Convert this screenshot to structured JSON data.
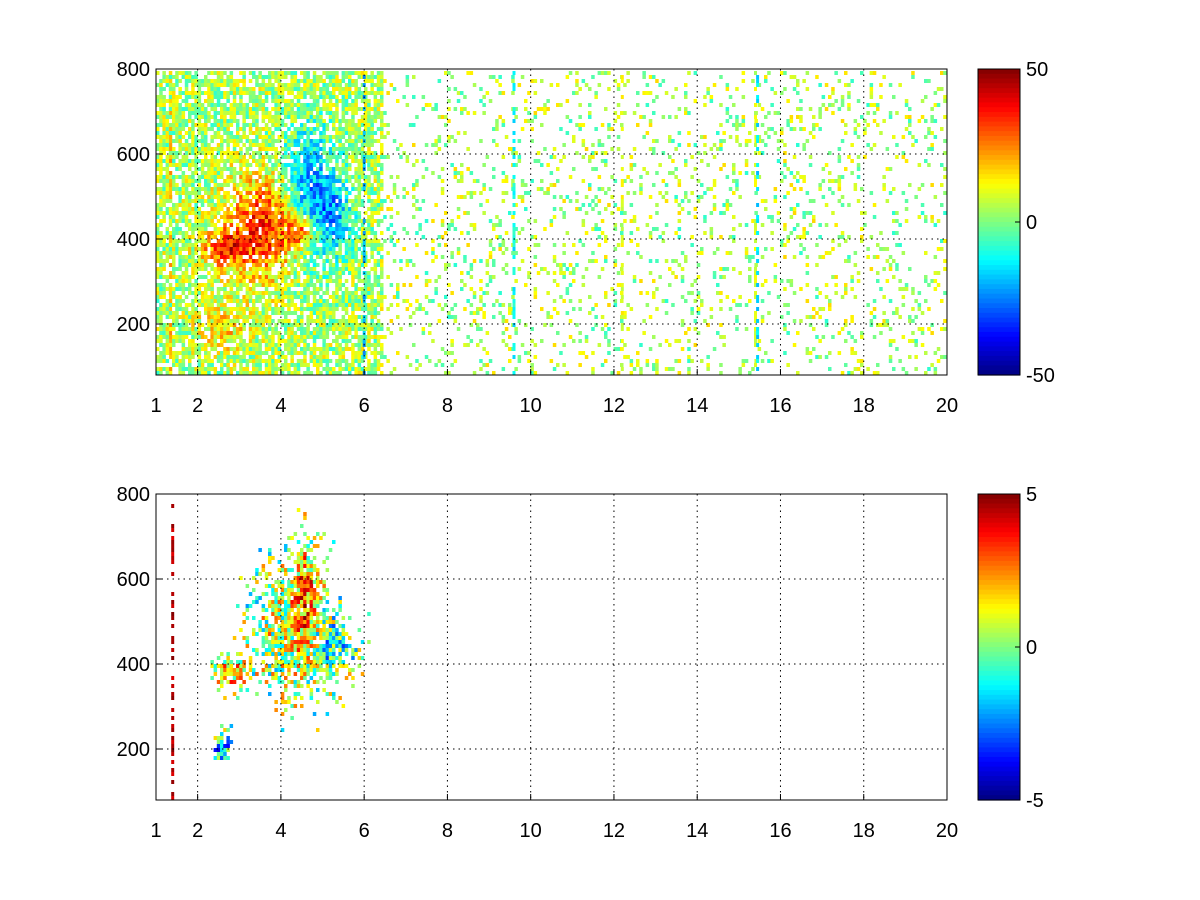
{
  "chart_data": [
    {
      "type": "heatmap",
      "title": "",
      "xlabel": "",
      "ylabel": "",
      "xlim": [
        1,
        20
      ],
      "ylim": [
        80,
        800
      ],
      "xticks": [
        1,
        2,
        4,
        6,
        8,
        10,
        12,
        14,
        16,
        18,
        20
      ],
      "yticks": [
        200,
        400,
        600,
        800
      ],
      "grid": true,
      "colormap": "jet",
      "clim": [
        -50,
        50
      ],
      "colorbar_ticks": [
        50,
        0,
        -50
      ],
      "features": [
        {
          "x": 3.6,
          "y": 430,
          "value": 32,
          "spread_x": 0.9,
          "spread_y": 120
        },
        {
          "x": 2.6,
          "y": 380,
          "value": 25,
          "spread_x": 0.5,
          "spread_y": 40
        },
        {
          "x": 4.5,
          "y": 420,
          "value": 30,
          "spread_x": 0.4,
          "spread_y": 40
        },
        {
          "x": 4.7,
          "y": 500,
          "value": -28,
          "spread_x": 0.7,
          "spread_y": 160
        },
        {
          "x": 5.3,
          "y": 450,
          "value": -15,
          "spread_x": 0.5,
          "spread_y": 80
        },
        {
          "x": 2.6,
          "y": 190,
          "value": 12,
          "spread_x": 0.6,
          "spread_y": 60
        }
      ],
      "vertical_streaks": [
        {
          "x": 1.35,
          "value": 20
        },
        {
          "x": 6.0,
          "value": -20
        },
        {
          "x": 9.6,
          "value": -12
        },
        {
          "x": 12.2,
          "value": 10
        },
        {
          "x": 15.4,
          "value": 8
        },
        {
          "x": 15.45,
          "value": -15
        }
      ]
    },
    {
      "type": "heatmap",
      "title": "",
      "xlabel": "",
      "ylabel": "",
      "xlim": [
        1,
        20
      ],
      "ylim": [
        80,
        800
      ],
      "xticks": [
        1,
        2,
        4,
        6,
        8,
        10,
        12,
        14,
        16,
        18,
        20
      ],
      "yticks": [
        200,
        400,
        600,
        800
      ],
      "grid": true,
      "colormap": "jet",
      "clim": [
        -5,
        5
      ],
      "colorbar_ticks": [
        5,
        0,
        -5
      ],
      "features": [
        {
          "x": 4.2,
          "y": 480,
          "value": 0.8,
          "spread_x": 0.8,
          "spread_y": 130
        },
        {
          "x": 4.6,
          "y": 560,
          "value": 2.5,
          "spread_x": 0.3,
          "spread_y": 120
        },
        {
          "x": 5.2,
          "y": 440,
          "value": -1.5,
          "spread_x": 0.5,
          "spread_y": 60
        },
        {
          "x": 2.8,
          "y": 380,
          "value": 2.0,
          "spread_x": 0.4,
          "spread_y": 30
        },
        {
          "x": 2.6,
          "y": 200,
          "value": -2.5,
          "spread_x": 0.2,
          "spread_y": 35
        }
      ],
      "vertical_streaks": [
        {
          "x": 1.4,
          "value": 4.5
        }
      ]
    }
  ]
}
